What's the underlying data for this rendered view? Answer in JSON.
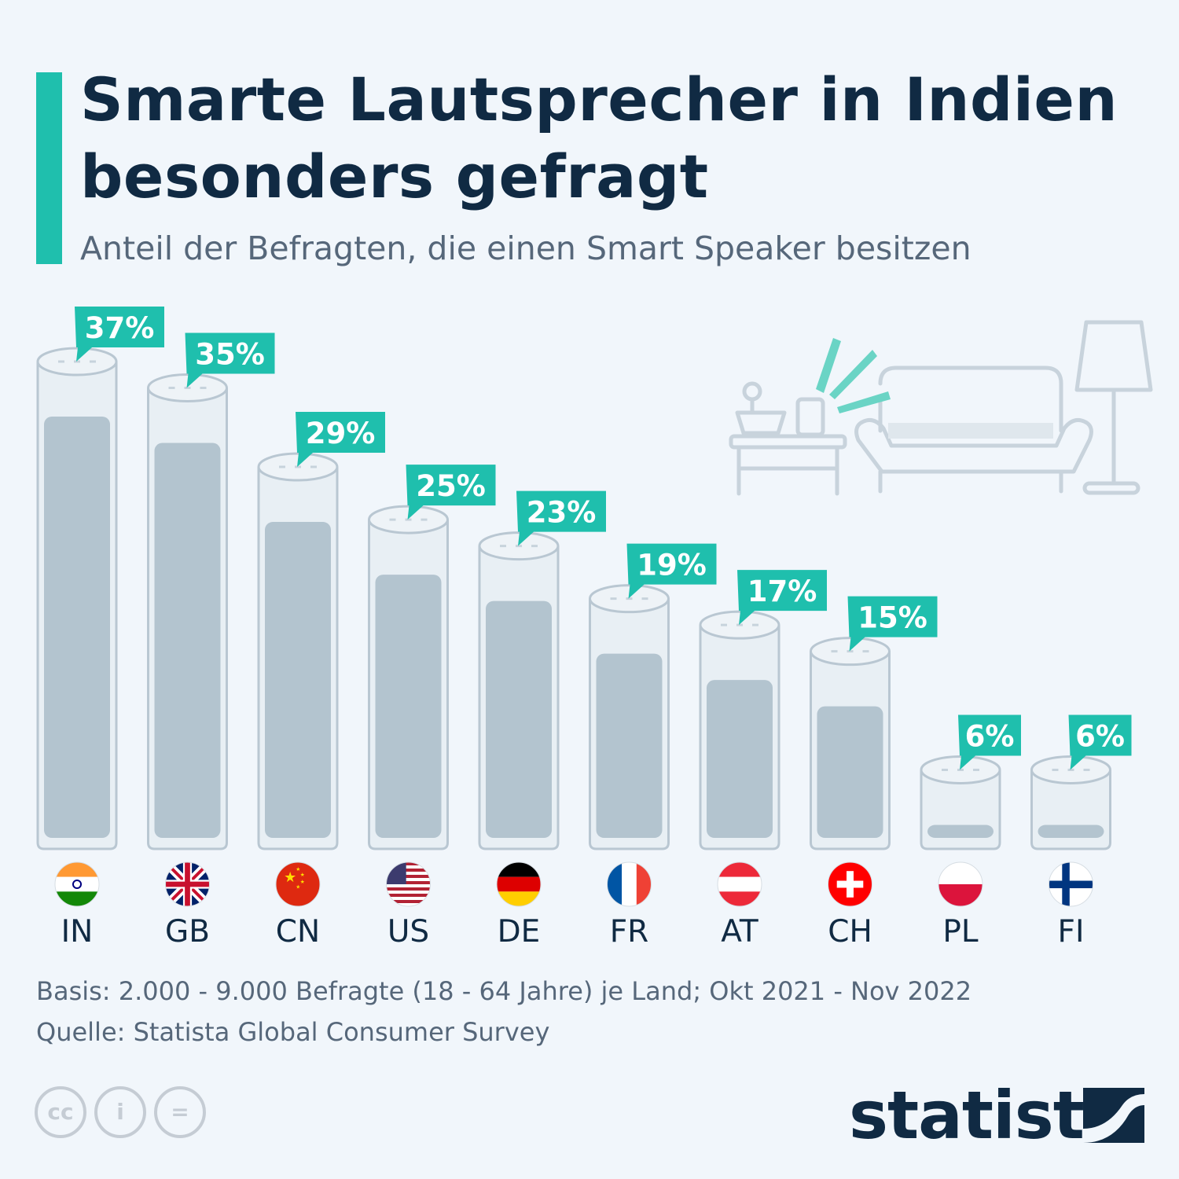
{
  "header": {
    "title": "Smarte Lautsprecher in Indien besonders gefragt",
    "subtitle": "Anteil der Befragten, die einen Smart Speaker besitzen"
  },
  "chart_data": {
    "type": "bar",
    "title": "Smarte Lautsprecher in Indien besonders gefragt",
    "subtitle": "Anteil der Befragten, die einen Smart Speaker besitzen",
    "categories": [
      "IN",
      "GB",
      "CN",
      "US",
      "DE",
      "FR",
      "AT",
      "CH",
      "PL",
      "FI"
    ],
    "values": [
      37,
      35,
      29,
      25,
      23,
      19,
      17,
      15,
      6,
      6
    ],
    "value_labels": [
      "37%",
      "35%",
      "29%",
      "25%",
      "23%",
      "19%",
      "17%",
      "15%",
      "6%",
      "6%"
    ],
    "unit": "%",
    "ylim": [
      0,
      37
    ],
    "grid": false,
    "legend": "none",
    "flags": [
      "flag-india-icon",
      "flag-uk-icon",
      "flag-china-icon",
      "flag-usa-icon",
      "flag-germany-icon",
      "flag-france-icon",
      "flag-austria-icon",
      "flag-switzerland-icon",
      "flag-poland-icon",
      "flag-finland-icon"
    ]
  },
  "footer": {
    "basis": "Basis: 2.000 - 9.000 Befragte (18 - 64 Jahre) je Land; Okt 2021 - Nov 2022",
    "source": "Quelle: Statista Global Consumer Survey",
    "brand": "statista",
    "license_icons": [
      "cc-icon",
      "attribution-icon",
      "no-derivatives-icon"
    ]
  },
  "colors": {
    "accent": "#1fbfad",
    "title": "#102a43",
    "subtitle": "#56677a",
    "bar_fill": "#b3c4cf",
    "bar_light": "#dce6ec",
    "background": "#f1f6fb"
  }
}
